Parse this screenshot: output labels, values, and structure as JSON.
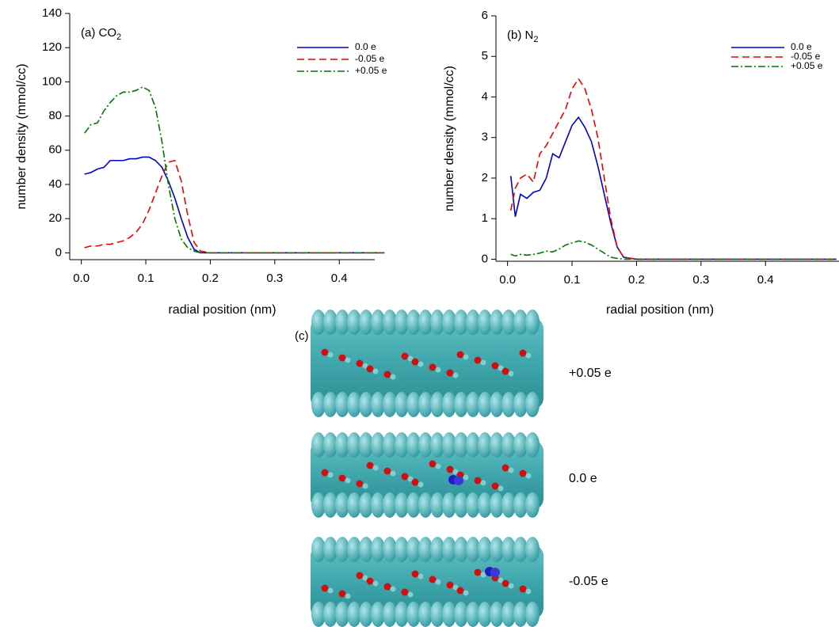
{
  "chart_data": [
    {
      "type": "line",
      "title": "(a) CO",
      "title_subscript": "2",
      "x_label": "radial position (nm)",
      "y_label": "number density (mmol/cc)",
      "x": [
        0.005,
        0.015,
        0.025,
        0.035,
        0.045,
        0.055,
        0.065,
        0.075,
        0.085,
        0.095,
        0.105,
        0.115,
        0.125,
        0.135,
        0.145,
        0.155,
        0.165,
        0.175,
        0.185,
        0.2,
        0.25,
        0.3,
        0.35,
        0.4,
        0.47
      ],
      "series": [
        {
          "name": "0.0 e",
          "color": "#0000cc",
          "dash": "solid",
          "values": [
            46,
            47,
            49,
            50,
            54,
            54,
            54,
            55,
            55,
            56,
            56,
            54,
            50,
            42,
            32,
            20,
            9,
            2,
            0,
            0,
            0,
            0,
            0,
            0,
            0
          ]
        },
        {
          "name": "-0.05 e",
          "color": "#ee0000",
          "dash": "dashed",
          "values": [
            3,
            4,
            4,
            5,
            5,
            6,
            7,
            9,
            12,
            17,
            25,
            35,
            45,
            53,
            54,
            42,
            22,
            6,
            1,
            0,
            0,
            0,
            0,
            0,
            0
          ]
        },
        {
          "name": "+0.05 e",
          "color": "#007700",
          "dash": "dashdot",
          "values": [
            70,
            75,
            76,
            83,
            88,
            92,
            94,
            94,
            95,
            97,
            95,
            85,
            65,
            40,
            20,
            8,
            3,
            1,
            0,
            0,
            0,
            0,
            0,
            0,
            0
          ]
        }
      ],
      "xlim": [
        -0.018,
        0.455
      ],
      "ylim": [
        -4,
        140
      ],
      "xticks": [
        {
          "value": 0,
          "label": "0.0"
        },
        0.1,
        0.2,
        0.3,
        0.4
      ],
      "yticks": [
        0,
        20,
        40,
        60,
        80,
        100,
        120,
        140
      ]
    },
    {
      "type": "line",
      "title": "(b) N",
      "title_subscript": "2",
      "x_label": "radial position (nm)",
      "y_label": "number density (mmol/cc)",
      "x": [
        0.005,
        0.012,
        0.02,
        0.03,
        0.04,
        0.05,
        0.06,
        0.07,
        0.08,
        0.09,
        0.1,
        0.11,
        0.12,
        0.13,
        0.14,
        0.15,
        0.16,
        0.17,
        0.18,
        0.2,
        0.3,
        0.4,
        0.51
      ],
      "series": [
        {
          "name": "0.0 e",
          "color": "#0000cc",
          "dash": "solid",
          "values": [
            2.05,
            1.05,
            1.6,
            1.5,
            1.65,
            1.7,
            2.0,
            2.6,
            2.5,
            2.9,
            3.3,
            3.5,
            3.25,
            2.9,
            2.3,
            1.6,
            0.9,
            0.3,
            0.05,
            0,
            0,
            0,
            0
          ]
        },
        {
          "name": "-0.05 e",
          "color": "#ee0000",
          "dash": "dashed",
          "values": [
            1.2,
            1.75,
            2.0,
            2.1,
            1.9,
            2.6,
            2.8,
            3.1,
            3.4,
            3.7,
            4.2,
            4.45,
            4.2,
            3.7,
            3.0,
            2.0,
            1.0,
            0.3,
            0.05,
            0,
            0,
            0,
            0
          ]
        },
        {
          "name": "+0.05 e",
          "color": "#007700",
          "dash": "dashdot",
          "values": [
            0.12,
            0.08,
            0.12,
            0.1,
            0.12,
            0.15,
            0.2,
            0.18,
            0.25,
            0.35,
            0.4,
            0.45,
            0.42,
            0.35,
            0.25,
            0.15,
            0.05,
            0.02,
            0,
            0,
            0,
            0,
            0
          ]
        }
      ],
      "xlim": [
        -0.018,
        0.514
      ],
      "ylim": [
        -0.05,
        6
      ],
      "xticks": [
        {
          "value": 0,
          "label": "0.0"
        },
        0.1,
        0.2,
        0.3,
        0.4
      ],
      "yticks": [
        0,
        1,
        2,
        3,
        4,
        5,
        6
      ]
    }
  ],
  "panel_c": {
    "label": "(c)",
    "tube_labels": [
      "+0.05 e",
      "0.0 e",
      "-0.05 e"
    ]
  }
}
